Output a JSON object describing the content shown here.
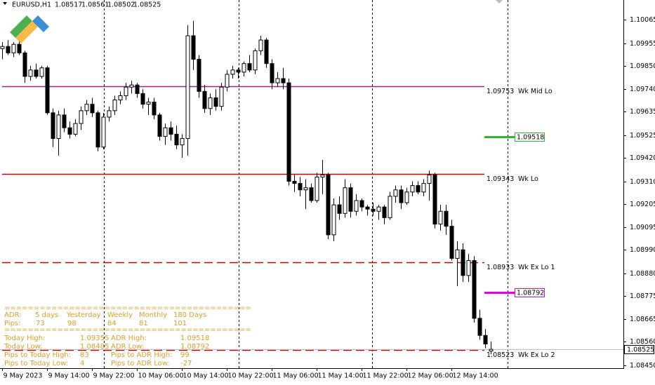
{
  "chart_data": {
    "type": "candlestick",
    "title": "EURUSD,H1",
    "up_color": "#ffffff",
    "down_color": "#000000",
    "xlim": [
      5.625,
      116.625
    ],
    "ylim": [
      1.08437,
      1.10157
    ],
    "xticks": [
      {
        "value": 6,
        "label": "9 May 2023"
      },
      {
        "value": 14,
        "label": "9 May 14:00"
      },
      {
        "value": 22,
        "label": "9 May 22:00"
      },
      {
        "value": 30,
        "label": "10 May 06:00"
      },
      {
        "value": 38,
        "label": "10 May 14:00"
      },
      {
        "value": 46,
        "label": "10 May 22:00"
      },
      {
        "value": 54,
        "label": "11 May 06:00"
      },
      {
        "value": 62,
        "label": "11 May 14:00"
      },
      {
        "value": 70,
        "label": "11 May 22:00"
      },
      {
        "value": 78,
        "label": "12 May 06:00"
      },
      {
        "value": 86,
        "label": "12 May 14:00"
      }
    ],
    "yticks": [
      1.10065,
      1.09955,
      {
        "value": 1.0985,
        "label": "1.09850"
      },
      {
        "value": 1.0974,
        "label": "1.09740"
      },
      1.09635,
      1.09525,
      {
        "value": 1.0942,
        "label": "1.09420"
      },
      {
        "value": 1.0931,
        "label": "1.09310"
      },
      1.09205,
      1.09095,
      {
        "value": 1.0899,
        "label": "1.08990"
      },
      {
        "value": 1.0888,
        "label": "1.08880"
      },
      1.08775,
      1.08665,
      {
        "value": 1.0856,
        "label": "1.08560"
      },
      {
        "value": 1.0845,
        "label": "1.08450"
      }
    ],
    "x": [
      6,
      7,
      8,
      9,
      10,
      11,
      12,
      13,
      14,
      15,
      16,
      17,
      18,
      19,
      20,
      21,
      22,
      23,
      24,
      25,
      26,
      27,
      28,
      29,
      30,
      31,
      32,
      33,
      34,
      35,
      36,
      37,
      38,
      39,
      40,
      41,
      42,
      43,
      44,
      45,
      46,
      47,
      48,
      49,
      50,
      51,
      52,
      53,
      54,
      55,
      56,
      57,
      58,
      59,
      60,
      61,
      62,
      63,
      64,
      65,
      66,
      67,
      68,
      69,
      70,
      71,
      72,
      73,
      74,
      75,
      76,
      77,
      78,
      79,
      80,
      81,
      82,
      83,
      84,
      85,
      86,
      87,
      88,
      89,
      90,
      91,
      92,
      93
    ],
    "candles": [
      [
        1.0993,
        1.0996,
        1.0988,
        1.0994
      ],
      [
        1.0994,
        1.0997,
        1.099,
        1.0991
      ],
      [
        1.0991,
        1.0996,
        1.0989,
        1.0995
      ],
      [
        1.0995,
        1.0997,
        1.099,
        1.0991
      ],
      [
        1.0991,
        1.0992,
        1.0977,
        1.098
      ],
      [
        1.098,
        1.0985,
        1.0978,
        1.0983
      ],
      [
        1.0983,
        1.0986,
        1.0979,
        1.098
      ],
      [
        1.098,
        1.0985,
        1.0979,
        1.0984
      ],
      [
        1.0984,
        1.0985,
        1.0962,
        1.0963
      ],
      [
        1.0963,
        1.0965,
        1.0947,
        1.0951
      ],
      [
        1.0951,
        1.0964,
        1.0943,
        1.0962
      ],
      [
        1.0962,
        1.0965,
        1.0954,
        1.0956
      ],
      [
        1.0956,
        1.0959,
        1.0951,
        1.0953
      ],
      [
        1.0953,
        1.096,
        1.0952,
        1.0958
      ],
      [
        1.0958,
        1.0966,
        1.0955,
        1.0964
      ],
      [
        1.0964,
        1.0969,
        1.0962,
        1.0967
      ],
      [
        1.0967,
        1.097,
        1.0961,
        1.0963
      ],
      [
        1.0963,
        1.0964,
        1.0945,
        1.0947
      ],
      [
        1.0947,
        1.0963,
        1.0946,
        1.0961
      ],
      [
        1.0961,
        1.0966,
        1.0959,
        1.0964
      ],
      [
        1.0964,
        1.0971,
        1.0962,
        1.0969
      ],
      [
        1.0969,
        1.0973,
        1.0967,
        1.0971
      ],
      [
        1.0971,
        1.0977,
        1.0969,
        1.0975
      ],
      [
        1.0975,
        1.0978,
        1.0972,
        1.0976
      ],
      [
        1.0976,
        1.0977,
        1.097,
        1.0972
      ],
      [
        1.0972,
        1.0974,
        1.0965,
        1.0967
      ],
      [
        1.0967,
        1.097,
        1.0962,
        1.0968
      ],
      [
        1.0968,
        1.097,
        1.096,
        1.0962
      ],
      [
        1.0962,
        1.0963,
        1.095,
        1.0952
      ],
      [
        1.0952,
        1.0958,
        1.0948,
        1.0956
      ],
      [
        1.0956,
        1.0959,
        1.095,
        1.0953
      ],
      [
        1.0953,
        1.0957,
        1.0946,
        1.0948
      ],
      [
        1.0948,
        1.0953,
        1.0942,
        1.0951
      ],
      [
        1.0951,
        1.1004,
        1.0943,
        1.0999
      ],
      [
        1.0999,
        1.1006,
        1.0983,
        1.0988
      ],
      [
        1.0988,
        1.099,
        1.097,
        1.0973
      ],
      [
        1.0973,
        1.0976,
        1.0963,
        1.0965
      ],
      [
        1.0965,
        1.0972,
        1.0962,
        1.097
      ],
      [
        1.097,
        1.0974,
        1.0964,
        1.0966
      ],
      [
        1.0966,
        1.0977,
        1.0964,
        1.0975
      ],
      [
        1.0975,
        1.0983,
        1.0973,
        1.0981
      ],
      [
        1.0981,
        1.0985,
        1.0979,
        1.0983
      ],
      [
        1.0983,
        1.0984,
        1.0979,
        1.0982
      ],
      [
        1.0982,
        1.0987,
        1.098,
        1.0986
      ],
      [
        1.0986,
        1.099,
        1.0982,
        1.0983
      ],
      [
        1.0983,
        1.0993,
        1.0981,
        1.0992
      ],
      [
        1.0992,
        1.0999,
        1.099,
        1.0997
      ],
      [
        1.0997,
        1.0998,
        1.0984,
        1.0986
      ],
      [
        1.0986,
        1.0988,
        1.0974,
        1.0977
      ],
      [
        1.0977,
        1.0982,
        1.0975,
        1.0979
      ],
      [
        1.0979,
        1.0984,
        1.0974,
        1.0977
      ],
      [
        1.0977,
        1.0979,
        1.0929,
        1.0931
      ],
      [
        1.0931,
        1.0934,
        1.0926,
        1.093
      ],
      [
        1.093,
        1.0933,
        1.0924,
        1.0927
      ],
      [
        1.0927,
        1.0932,
        1.0918,
        1.0928
      ],
      [
        1.0928,
        1.093,
        1.0921,
        1.0922
      ],
      [
        1.0922,
        1.0935,
        1.0921,
        1.0933
      ],
      [
        1.0933,
        1.0941,
        1.0925,
        1.0934
      ],
      [
        1.0934,
        1.0935,
        1.0904,
        1.0906
      ],
      [
        1.0906,
        1.0923,
        1.0903,
        1.092
      ],
      [
        1.092,
        1.0924,
        1.0913,
        1.0916
      ],
      [
        1.0916,
        1.0932,
        1.0914,
        1.0928
      ],
      [
        1.0928,
        1.093,
        1.0914,
        1.0917
      ],
      [
        1.0917,
        1.0925,
        1.0915,
        1.0922
      ],
      [
        1.0922,
        1.0923,
        1.0917,
        1.0919
      ],
      [
        1.0919,
        1.092,
        1.0915,
        1.0918
      ],
      [
        1.0918,
        1.0921,
        1.0915,
        1.0917
      ],
      [
        1.0917,
        1.092,
        1.0913,
        1.0919
      ],
      [
        1.0919,
        1.092,
        1.0911,
        1.0914
      ],
      [
        1.0914,
        1.0926,
        1.0913,
        1.0924
      ],
      [
        1.0924,
        1.0929,
        1.0921,
        1.0927
      ],
      [
        1.0927,
        1.0929,
        1.0918,
        1.0921
      ],
      [
        1.0921,
        1.0928,
        1.092,
        1.0926
      ],
      [
        1.0926,
        1.0931,
        1.0924,
        1.0929
      ],
      [
        1.0929,
        1.0931,
        1.0925,
        1.0926
      ],
      [
        1.0926,
        1.0932,
        1.0924,
        1.093
      ],
      [
        1.093,
        1.0936,
        1.0922,
        1.0934
      ],
      [
        1.0934,
        1.0935,
        1.0909,
        1.0911
      ],
      [
        1.0911,
        1.092,
        1.0908,
        1.0917
      ],
      [
        1.0917,
        1.092,
        1.0906,
        1.091
      ],
      [
        1.091,
        1.0913,
        1.0894,
        1.0895
      ],
      [
        1.0895,
        1.0903,
        1.0882,
        1.0899
      ],
      [
        1.0899,
        1.0902,
        1.0884,
        1.0887
      ],
      [
        1.0887,
        1.0897,
        1.0884,
        1.0894
      ],
      [
        1.0894,
        1.0896,
        1.0865,
        1.0867
      ],
      [
        1.0867,
        1.0871,
        1.0857,
        1.0859
      ],
      [
        1.0859,
        1.0862,
        1.0853,
        1.0855
      ],
      [
        1.08517,
        1.08561,
        1.08502,
        1.08525
      ]
    ],
    "levels": [
      {
        "value": 1.09753,
        "label": "Wk Mid Lo",
        "color": "#a0208f",
        "style": "solid"
      },
      {
        "value": 1.09343,
        "label": "Wk Lo",
        "color": "#cc0000",
        "style": "solid"
      },
      {
        "value": 1.08933,
        "label": "Wk Ex Lo 1",
        "color": "#cc0000",
        "style": "dashed"
      },
      {
        "value": 1.08523,
        "label": "Wk Ex Lo 2",
        "color": "#cc0000",
        "style": "dashed"
      }
    ],
    "markers": [
      {
        "value": 1.09518,
        "color": "#2fb52f"
      },
      {
        "value": 1.08792,
        "color": "#e600e6"
      }
    ]
  },
  "info_panel": {
    "separator": "==========================================",
    "adr_row": [
      "ADR:",
      "5 days",
      "Yesterday",
      "Weekly",
      "Monthly",
      "180 Days"
    ],
    "pips_row": [
      "Pips:",
      73,
      98,
      84,
      81,
      101
    ],
    "rows": [
      [
        "Today High:",
        1.09355,
        "ADR High:",
        1.09518
      ],
      [
        "Today Low:",
        1.08485,
        "ADR Low:",
        1.08792
      ],
      [
        "Pips to Today High:",
        83,
        "Pips to ADR High:",
        99
      ],
      [
        "Pips to Today Low:",
        4,
        "Pips to ADR Low:",
        -27
      ]
    ]
  }
}
